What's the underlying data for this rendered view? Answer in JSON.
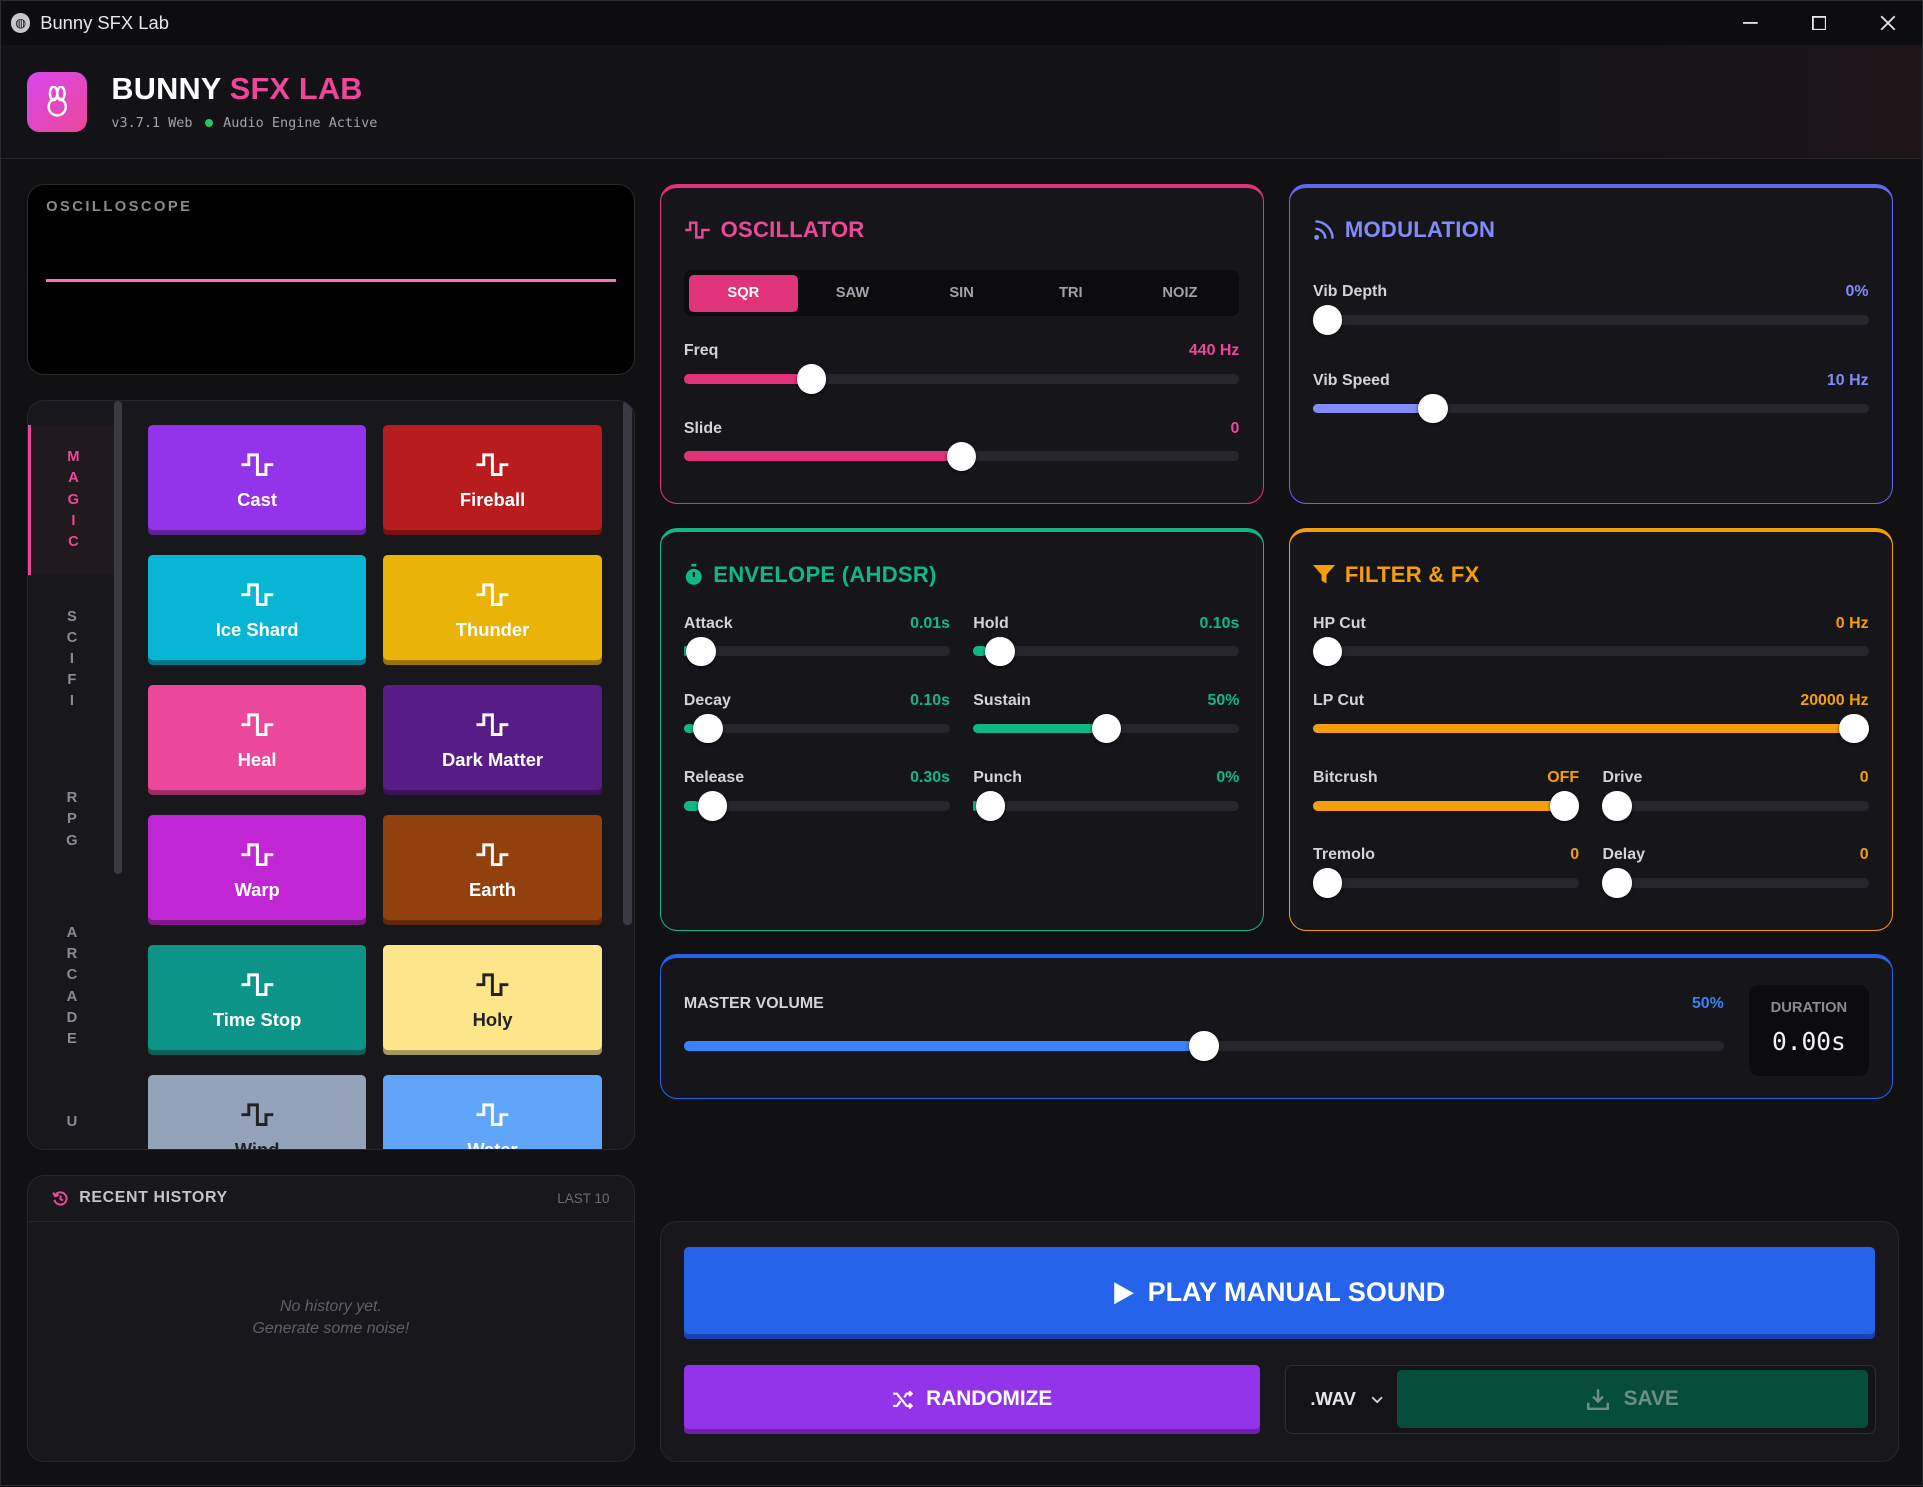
{
  "window": {
    "title": "Bunny SFX Lab",
    "min": "—",
    "max": "▢",
    "close": "✕"
  },
  "header": {
    "brand_main": "BUNNY",
    "brand_accent": "SFX LAB",
    "version": "v3.7.1 Web",
    "status": "Audio Engine Active"
  },
  "oscilloscope": {
    "label": "OSCILLOSCOPE"
  },
  "categories": [
    {
      "label": "MAGIC",
      "active": true
    },
    {
      "label": "SCIFI",
      "active": false
    },
    {
      "label": "RPG",
      "active": false
    },
    {
      "label": "ARCADE",
      "active": false
    },
    {
      "label": "U",
      "active": false
    }
  ],
  "presets": [
    {
      "name": "Cast",
      "color": "#9333ea"
    },
    {
      "name": "Fireball",
      "color": "#b91c1c"
    },
    {
      "name": "Ice Shard",
      "color": "#06b6d4"
    },
    {
      "name": "Thunder",
      "color": "#eab308"
    },
    {
      "name": "Heal",
      "color": "#ec4899"
    },
    {
      "name": "Dark Matter",
      "color": "#581c87"
    },
    {
      "name": "Warp",
      "color": "#c026d3"
    },
    {
      "name": "Earth",
      "color": "#92400e"
    },
    {
      "name": "Time Stop",
      "color": "#0d9488"
    },
    {
      "name": "Holy",
      "color": "#fde68a"
    },
    {
      "name": "Wind",
      "color": "#94a3b8"
    },
    {
      "name": "Water",
      "color": "#60a5fa"
    }
  ],
  "history": {
    "title": "RECENT HISTORY",
    "right": "LAST 10",
    "empty_line1": "No history yet.",
    "empty_line2": "Generate some noise!"
  },
  "oscillator": {
    "title": "OSCILLATOR",
    "waves": [
      "SQR",
      "SAW",
      "SIN",
      "TRI",
      "NOIZ"
    ],
    "selected": "SQR",
    "sliders": [
      {
        "label": "Freq",
        "value": "440 Hz",
        "level": 0.215
      },
      {
        "label": "Slide",
        "value": "0",
        "level": 0.5
      }
    ]
  },
  "modulation": {
    "title": "MODULATION",
    "sliders": [
      {
        "label": "Vib Depth",
        "value": "0%",
        "level": 0.0
      },
      {
        "label": "Vib Speed",
        "value": "10 Hz",
        "level": 0.2
      }
    ]
  },
  "envelope": {
    "title": "ENVELOPE (AHDSR)",
    "sliders": [
      {
        "label": "Attack",
        "value": "0.01s",
        "level": 0.01
      },
      {
        "label": "Hold",
        "value": "0.10s",
        "level": 0.05
      },
      {
        "label": "Decay",
        "value": "0.10s",
        "level": 0.04
      },
      {
        "label": "Sustain",
        "value": "50%",
        "level": 0.5
      },
      {
        "label": "Release",
        "value": "0.30s",
        "level": 0.06
      },
      {
        "label": "Punch",
        "value": "0%",
        "level": 0.01
      }
    ]
  },
  "filter": {
    "title": "FILTER & FX",
    "sliders": [
      {
        "label": "HP Cut",
        "value": "0 Hz",
        "level": 0.0
      },
      {
        "label": "LP Cut",
        "value": "20000 Hz",
        "level": 1.0
      },
      {
        "label": "Bitcrush",
        "value": "OFF",
        "level": 1.0
      },
      {
        "label": "Drive",
        "value": "0",
        "level": 0.0
      },
      {
        "label": "Tremolo",
        "value": "0",
        "level": 0.0
      },
      {
        "label": "Delay",
        "value": "0",
        "level": 0.0
      }
    ]
  },
  "master": {
    "label": "MASTER VOLUME",
    "value": "50%",
    "level": 0.5,
    "duration_label": "DURATION",
    "duration_value": "0.00s"
  },
  "actions": {
    "play": "PLAY MANUAL SOUND",
    "randomize": "RANDOMIZE",
    "format": ".WAV",
    "save": "SAVE"
  },
  "colors": {
    "pink": "#ec4899",
    "indigo": "#818cf8",
    "green": "#10b981",
    "orange": "#f59e0b",
    "blue": "#3b82f6"
  }
}
